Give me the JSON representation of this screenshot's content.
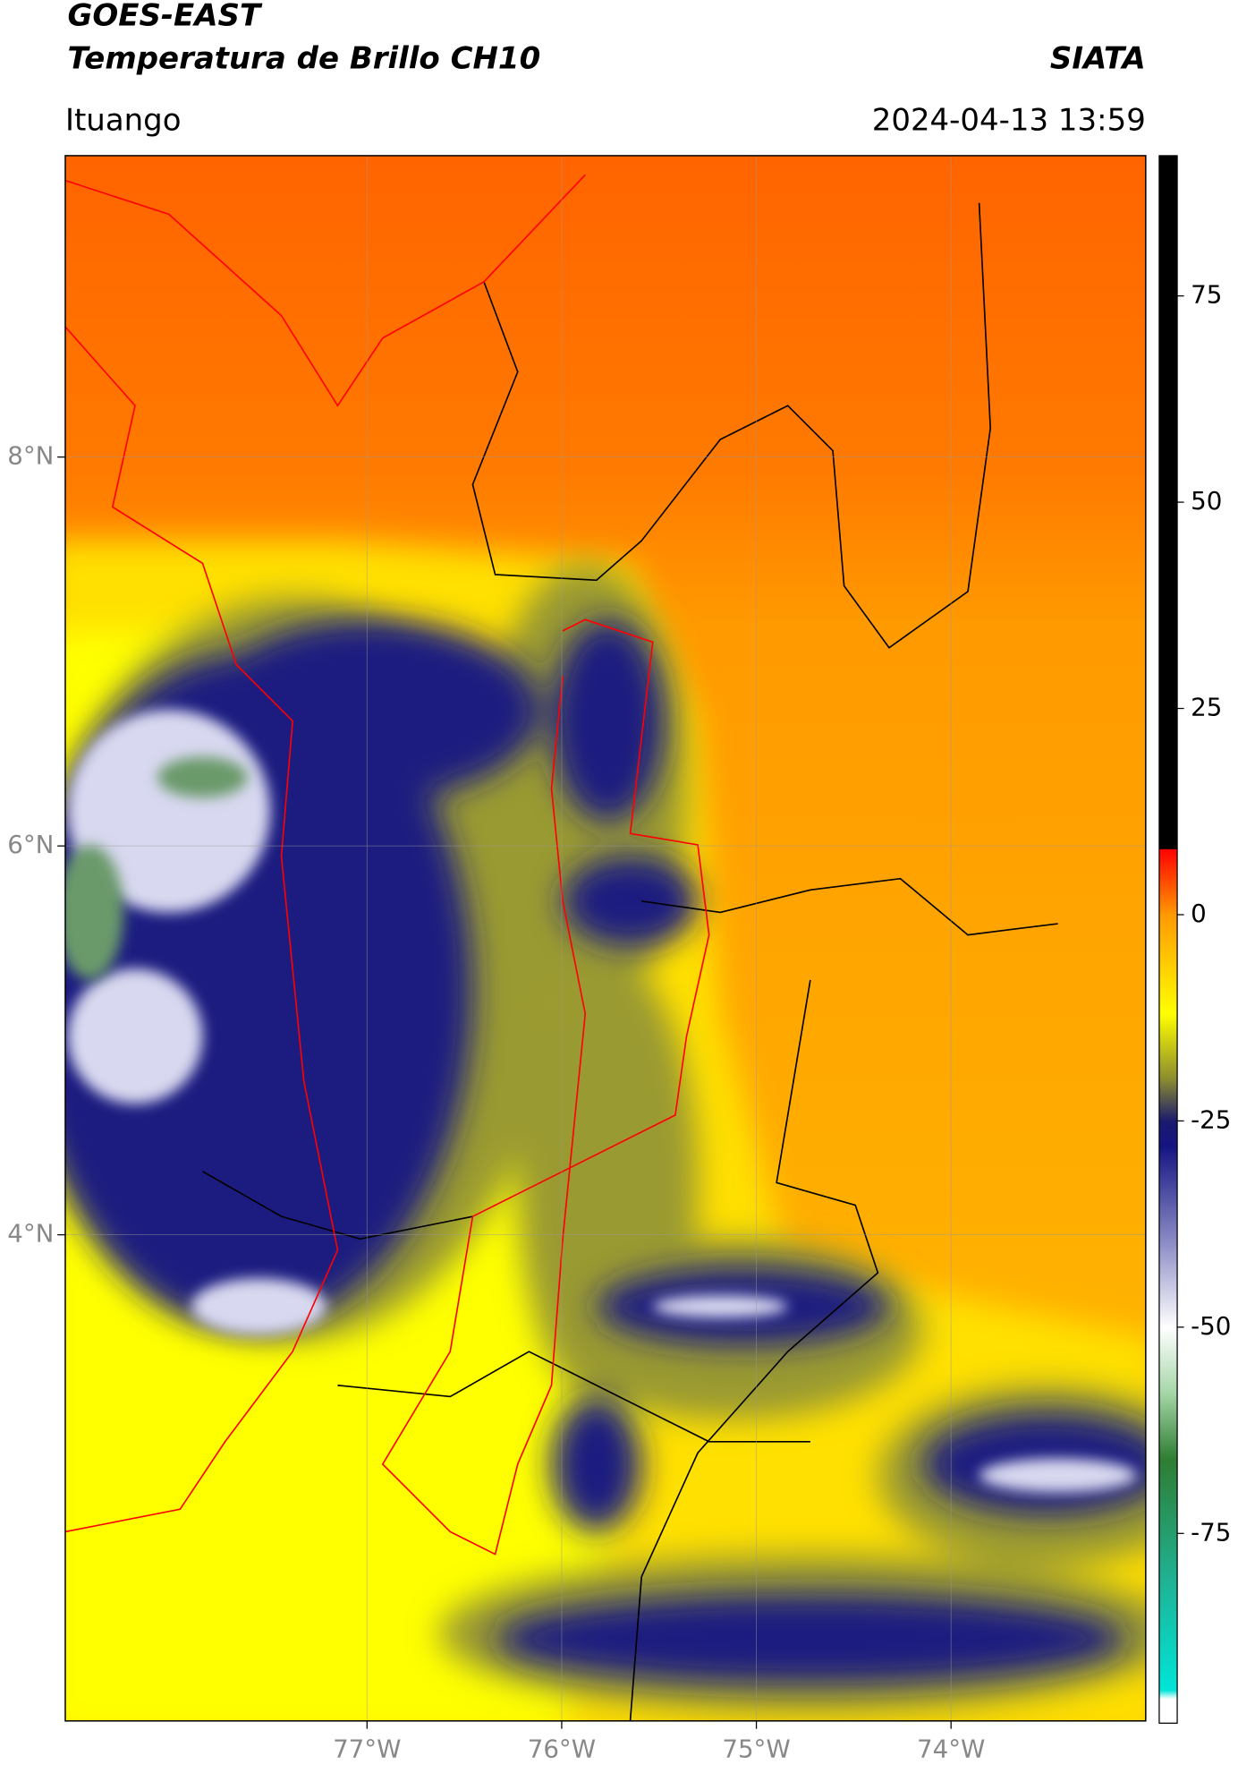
{
  "chart_data": {
    "type": "map",
    "title": "GOES-EAST",
    "subtitle": "Temperatura de Brillo CH10",
    "source": "SIATA",
    "location": "Ituango",
    "timestamp": "2024-04-13 13:59",
    "xlim": [
      -78.55,
      -73.0
    ],
    "ylim": [
      1.5,
      9.55
    ],
    "xticks": [
      {
        "value": -77,
        "label": "77°W"
      },
      {
        "value": -76,
        "label": "76°W"
      },
      {
        "value": -75,
        "label": "75°W"
      },
      {
        "value": -74,
        "label": "74°W"
      }
    ],
    "yticks": [
      {
        "value": 4,
        "label": "4°N"
      },
      {
        "value": 6,
        "label": "6°N"
      },
      {
        "value": 8,
        "label": "8°N"
      }
    ],
    "grid": true,
    "colorbar": {
      "clim": [
        -98,
        92
      ],
      "ticks": [
        -75,
        -50,
        -25,
        0,
        25,
        50,
        75
      ],
      "colormap": [
        [
          -98,
          "#ffffff"
        ],
        [
          -95,
          "#ffffff"
        ],
        [
          -94,
          "#00e5d8"
        ],
        [
          -80,
          "#20b090"
        ],
        [
          -66,
          "#2e7d32"
        ],
        [
          -58,
          "#a5d6a7"
        ],
        [
          -50,
          "#ffffff"
        ],
        [
          -40,
          "#8f8fc8"
        ],
        [
          -28,
          "#141482"
        ],
        [
          -25,
          "#1a1a6e"
        ],
        [
          -20,
          "#8a8a30"
        ],
        [
          -12,
          "#ffff00"
        ],
        [
          0,
          "#ff9900"
        ],
        [
          8,
          "#ff0000"
        ],
        [
          8,
          "#000000"
        ],
        [
          92,
          "#000000"
        ]
      ]
    }
  }
}
